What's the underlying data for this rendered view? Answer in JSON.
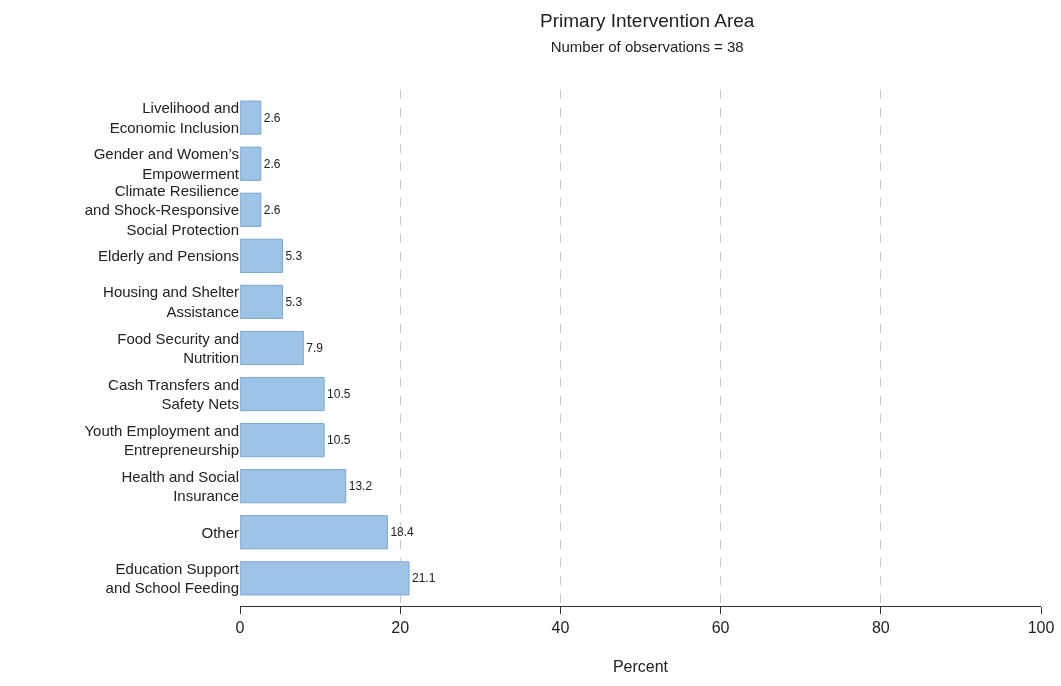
{
  "chart_data": {
    "type": "bar",
    "orientation": "horizontal",
    "title": "Primary Intervention Area",
    "subtitle": "Number of observations = 38",
    "xlabel": "Percent",
    "categories": [
      "Livelihood and Economic Inclusion",
      "Gender and Women’s Empowerment",
      "Climate Resilience and Shock-Responsive Social Protection",
      "Elderly and Pensions",
      "Housing and Shelter Assistance",
      "Food Security and Nutrition",
      "Cash Transfers and Safety Nets",
      "Youth Employment and Entrepreneurship",
      "Health and Social Insurance",
      "Other",
      "Education Support and School Feeding"
    ],
    "values": [
      2.6,
      2.6,
      2.6,
      5.3,
      5.3,
      7.9,
      10.5,
      10.5,
      13.2,
      18.4,
      21.1
    ],
    "color": "#9dc3e6",
    "data_labels": true,
    "xlim": [
      0,
      100
    ],
    "xticks": [
      0,
      20,
      40,
      60,
      80,
      100
    ],
    "grid": "x"
  }
}
